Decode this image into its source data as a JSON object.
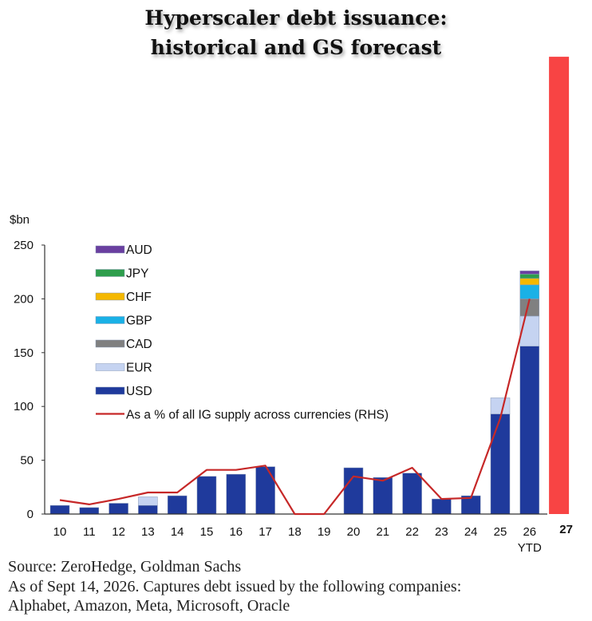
{
  "title_lines": [
    "Hyperscaler debt issuance:",
    "historical and GS forecast"
  ],
  "notes": [
    "Source: ZeroHedge, Goldman Sachs",
    "As of Sept 14, 2026. Captures debt issued by the following companies:",
    "Alphabet, Amazon, Meta, Microsoft, Oracle"
  ],
  "chart_data": {
    "type": "bar",
    "stacked": true,
    "title": "Hyperscaler debt issuance: historical and GS forecast",
    "ylabel": "$bn",
    "ylim": [
      0,
      250
    ],
    "yticks": [
      0,
      50,
      100,
      150,
      200,
      250
    ],
    "categories": [
      "10",
      "11",
      "12",
      "13",
      "14",
      "15",
      "16",
      "17",
      "18",
      "19",
      "20",
      "21",
      "22",
      "23",
      "24",
      "25",
      "26",
      "27"
    ],
    "category_sublabels": {
      "26": "YTD"
    },
    "series": [
      {
        "name": "USD",
        "color": "#1f3a9c",
        "values": [
          8,
          6,
          10,
          8,
          17,
          35,
          37,
          44,
          0,
          0,
          43,
          34,
          38,
          14,
          17,
          93,
          156,
          null
        ]
      },
      {
        "name": "EUR",
        "color": "#c5d3f1",
        "values": [
          0,
          0,
          0,
          8,
          0,
          0,
          0,
          0,
          0,
          0,
          0,
          0,
          0,
          0,
          0,
          15,
          28,
          null
        ]
      },
      {
        "name": "CAD",
        "color": "#808080",
        "values": [
          0,
          0,
          0,
          0,
          0,
          0,
          0,
          0,
          0,
          0,
          0,
          0,
          0,
          0,
          0,
          0,
          16,
          null
        ]
      },
      {
        "name": "GBP",
        "color": "#1ab1e6",
        "values": [
          0,
          0,
          0,
          0,
          0,
          0,
          0,
          0,
          0,
          0,
          0,
          0,
          0,
          0,
          0,
          0,
          13,
          null
        ]
      },
      {
        "name": "CHF",
        "color": "#f5b800",
        "values": [
          0,
          0,
          0,
          0,
          0,
          0,
          0,
          0,
          0,
          0,
          0,
          0,
          0,
          0,
          0,
          0,
          6,
          null
        ]
      },
      {
        "name": "JPY",
        "color": "#2e9e4c",
        "values": [
          0,
          0,
          0,
          0,
          0,
          0,
          0,
          0,
          0,
          0,
          0,
          0,
          0,
          0,
          0,
          0,
          4,
          null
        ]
      },
      {
        "name": "AUD",
        "color": "#6a3fa0",
        "values": [
          0,
          0,
          0,
          0,
          0,
          0,
          0,
          0,
          0,
          0,
          0,
          0,
          0,
          0,
          0,
          0,
          3,
          null
        ]
      }
    ],
    "forecast": {
      "category": "27",
      "color": "#f84444",
      "value": 425
    },
    "line_series": {
      "name": "As a % of all IG supply across currencies (RHS)",
      "color": "#c62828",
      "axis": "right (not shown; plotted on left-axis scale)",
      "values": [
        13,
        9,
        14,
        20,
        20,
        41,
        41,
        45,
        0,
        0,
        35,
        31,
        43,
        14,
        15,
        89,
        200,
        null
      ]
    },
    "legend_order": [
      "AUD",
      "JPY",
      "CHF",
      "GBP",
      "CAD",
      "EUR",
      "USD",
      "As a % of all IG supply across currencies (RHS)"
    ],
    "legend_position": "top-left",
    "grid": false
  }
}
